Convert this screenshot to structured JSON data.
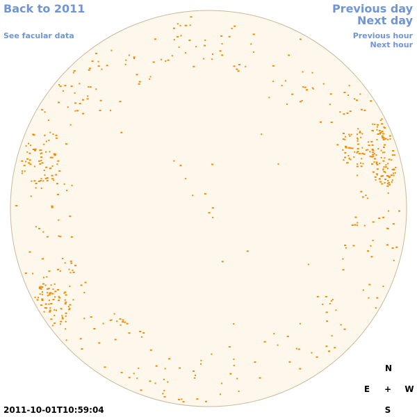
{
  "nav": {
    "back_year": "Back to 2011",
    "facular": "See facular data",
    "previous_day": "Previous day",
    "next_day": "Next day",
    "previous_hour": "Previous hour",
    "next_hour": "Next hour"
  },
  "compass": {
    "north": "N",
    "south": "S",
    "east": "E",
    "west": "W",
    "center": "+"
  },
  "timestamp": "2011-10-01T10:59:04",
  "colors": {
    "disk_fill": "#fef8ec",
    "disk_edge": "#c9b79a",
    "facula": "#f08a00",
    "link": "#6f95d8"
  }
}
